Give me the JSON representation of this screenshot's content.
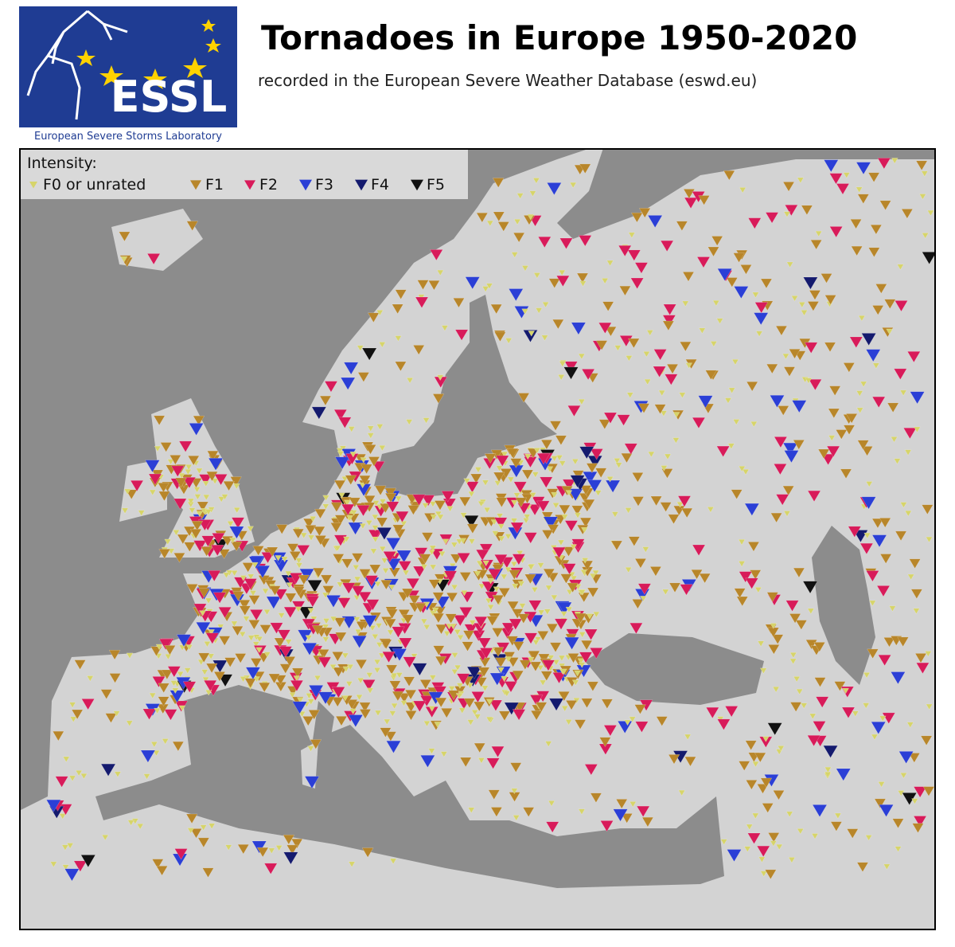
{
  "header": {
    "logo_text": "ESSL",
    "logo_caption": "European Severe Storms Laboratory",
    "title": "Tornadoes in Europe 1950-2020",
    "subtitle": "recorded in the European Severe Weather Database (eswd.eu)"
  },
  "legend": {
    "title": "Intensity:",
    "items": [
      {
        "label": "F0 or unrated",
        "color": "#d6d46a"
      },
      {
        "label": "F1",
        "color": "#b8862a"
      },
      {
        "label": "F2",
        "color": "#d81b5a"
      },
      {
        "label": "F3",
        "color": "#2b3fd6"
      },
      {
        "label": "F4",
        "color": "#141a6e"
      },
      {
        "label": "F5",
        "color": "#111111"
      }
    ]
  }
}
